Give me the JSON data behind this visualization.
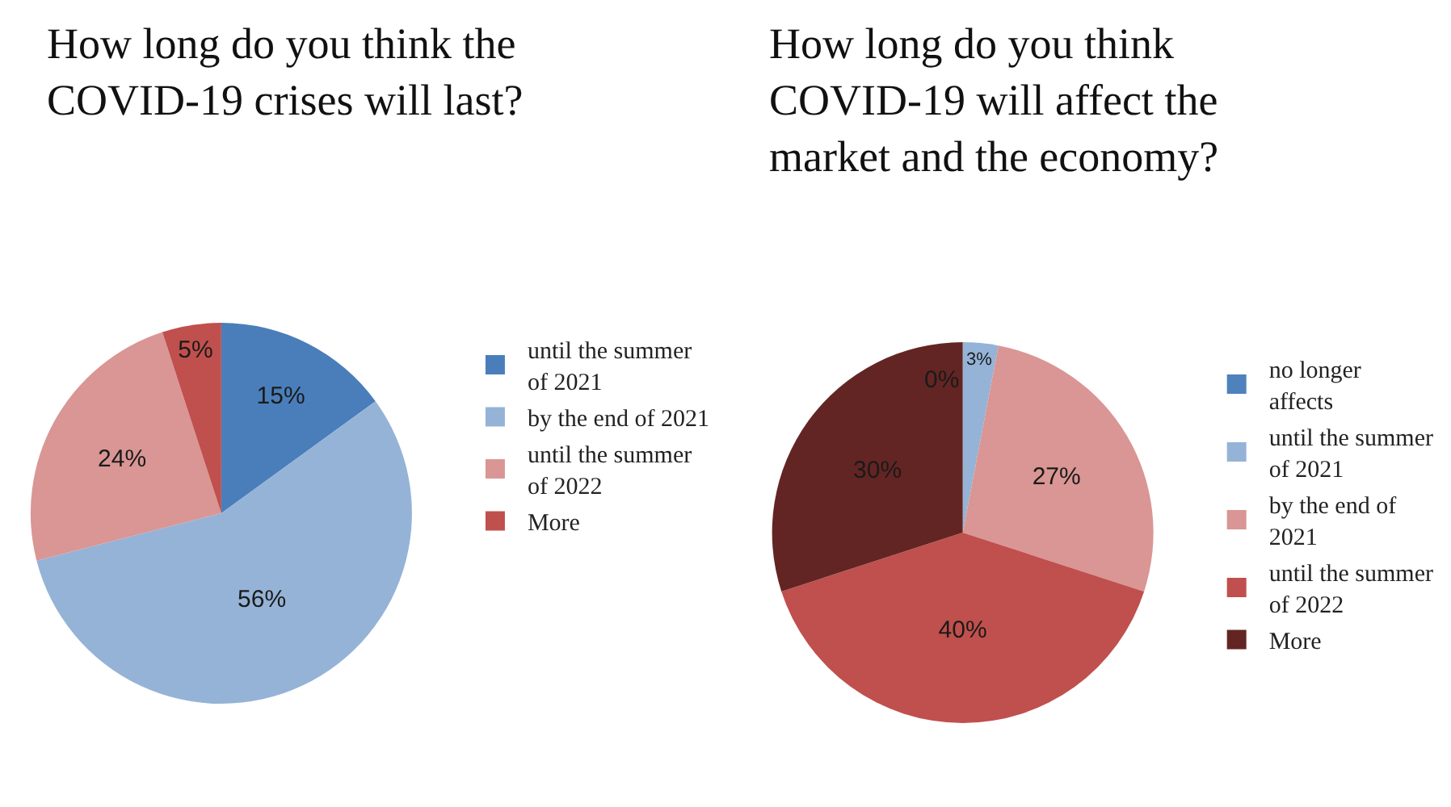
{
  "chart_data": [
    {
      "type": "pie",
      "title": "How long do you think the COVID-19 crises will last?",
      "categories": [
        "until the summer of 2021",
        "by the end of 2021",
        "until the summer of 2022",
        "More"
      ],
      "values": [
        15,
        56,
        24,
        5
      ],
      "colors": [
        "#4a7ebb",
        "#95b3d7",
        "#d99694",
        "#c0504d"
      ],
      "value_labels": [
        "15%",
        "56%",
        "24%",
        "5%"
      ],
      "legend": "right"
    },
    {
      "type": "pie",
      "title": "How long do you think COVID-19 will affect the market and the economy?",
      "categories": [
        "no longer affects",
        "until the summer of 2021",
        "by the end of 2021",
        "until the summer of 2022",
        "More"
      ],
      "values": [
        0,
        3,
        27,
        40,
        30
      ],
      "colors": [
        "#4f81bd",
        "#95b3d7",
        "#d99694",
        "#c0504d",
        "#632523"
      ],
      "value_labels": [
        "0%",
        "3%",
        "27%",
        "40%",
        "30%"
      ],
      "legend": "right"
    }
  ]
}
